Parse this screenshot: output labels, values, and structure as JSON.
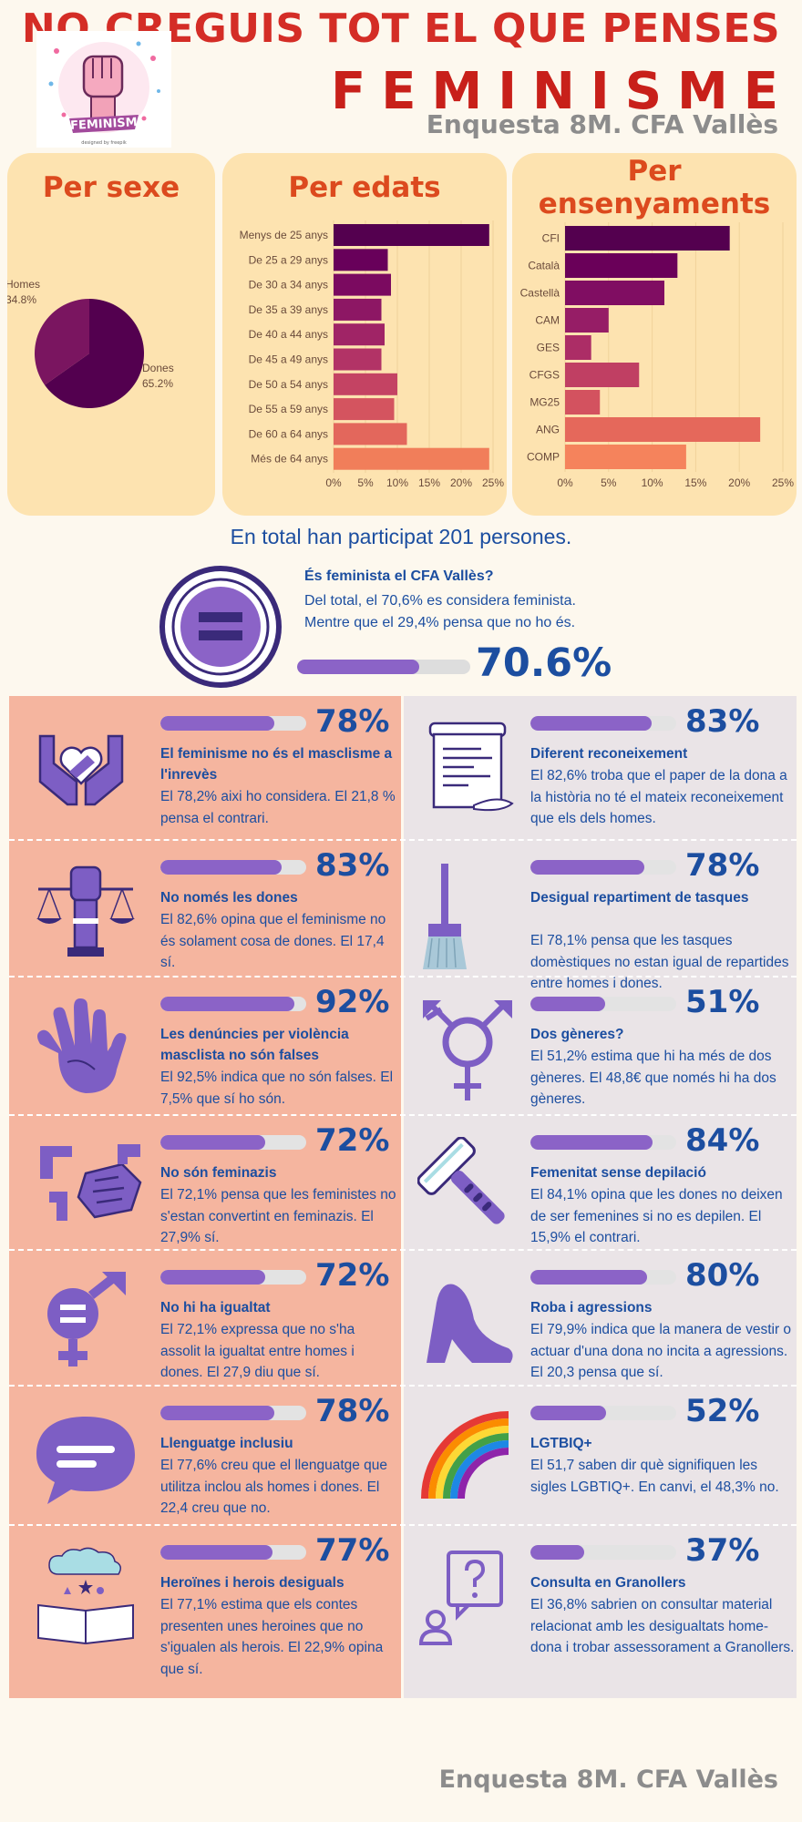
{
  "header": {
    "title": "NO CREGUIS TOT EL QUE PENSES",
    "title2": "FEMINISME",
    "subtitle": "Enquesta 8M. CFA Vallès",
    "logo_text": "FEMINISM",
    "logo_credit": "designed by freepik"
  },
  "colors": {
    "title_red": "#d42d26",
    "panel_bg": "#fde3b0",
    "accent_purple": "#8b63c7",
    "text_blue": "#1c4ea0",
    "left_col_bg": "#f5b59f",
    "right_col_bg": "#eae4e7"
  },
  "chart_data": [
    {
      "type": "pie",
      "title": "Per sexe",
      "labels": [
        "Dones",
        "Homes"
      ],
      "values": [
        65.2,
        34.8
      ],
      "value_labels": [
        "65.2%",
        "34.8%"
      ],
      "colors": [
        "#53004f",
        "#7a1560"
      ]
    },
    {
      "type": "bar",
      "orientation": "horizontal",
      "title": "Per edats",
      "categories": [
        "Menys de 25 anys",
        "De 25 a 29 anys",
        "De 30 a 34 anys",
        "De 35 a 39 anys",
        "De 40 a 44 anys",
        "De 45 a 49 anys",
        "De 50 a 54 anys",
        "De 55 a 59 anys",
        "De 60 a 64 anys",
        "Més de 64 anys"
      ],
      "values": [
        24.4,
        8.5,
        9.0,
        7.5,
        8.0,
        7.5,
        10.0,
        9.5,
        11.5,
        24.4
      ],
      "colors": [
        "#54004f",
        "#68005a",
        "#7b0a60",
        "#8d1764",
        "#a02466",
        "#b23366",
        "#c44363",
        "#d4545f",
        "#e3675c",
        "#f17e5a"
      ],
      "xlim": [
        0,
        25
      ],
      "xticks": [
        "0%",
        "5%",
        "10%",
        "15%",
        "20%",
        "25%"
      ],
      "grid": true
    },
    {
      "type": "bar",
      "orientation": "horizontal",
      "title": "Per ensenyaments",
      "categories": [
        "CFI",
        "Català",
        "Castellà",
        "CAM",
        "GES",
        "CFGS",
        "MG25",
        "ANG",
        "COMP"
      ],
      "values": [
        18.9,
        12.9,
        11.4,
        5.0,
        3.0,
        8.5,
        4.0,
        22.4,
        13.9
      ],
      "colors": [
        "#54004f",
        "#6a0059",
        "#800d62",
        "#961d66",
        "#ac2d66",
        "#c03f63",
        "#d3525f",
        "#e5685b",
        "#f5835c"
      ],
      "xlim": [
        0,
        25
      ],
      "xticks": [
        "0%",
        "5%",
        "10%",
        "15%",
        "20%",
        "25%"
      ],
      "grid": true
    }
  ],
  "total_text": "En total han participat 201 persones.",
  "feminist": {
    "title": "És feminista el CFA Vallès?",
    "text": "Del total, el 70,6% es considera feminista. Mentre que el 29,4% pensa que no ho és.",
    "percent_label": "70.6%",
    "value": 0.706
  },
  "left_items": [
    {
      "icon": "hands-heart-icon",
      "percent_label": "78%",
      "value": 0.78,
      "title": "El feminisme no és el masclisme a l'inrevès",
      "text": "El 78,2% aixi ho considera. El 21,8 % pensa el contrari."
    },
    {
      "icon": "fist-scales-icon",
      "percent_label": "83%",
      "value": 0.83,
      "title": "No només les dones",
      "text": "El 82,6% opina que el feminisme no és solament cosa de dones. El 17,4 sí."
    },
    {
      "icon": "hand-print-icon",
      "percent_label": "92%",
      "value": 0.92,
      "title": "Les denúncies per violència masclista no són falses",
      "text": "El 92,5% indica que no són falses. El 7,5% que sí ho són."
    },
    {
      "icon": "broken-swastika-icon",
      "percent_label": "72%",
      "value": 0.72,
      "title": "No són feminazis",
      "text": "El 72,1% pensa que les feministes no s'estan convertint en feminazis. El 27,9% sí."
    },
    {
      "icon": "gender-equal-icon",
      "percent_label": "72%",
      "value": 0.72,
      "title": "No hi ha igualtat",
      "text": "El 72,1% expressa que no s'ha assolit la igualtat entre homes i dones. El 27,9 diu que sí."
    },
    {
      "icon": "speech-bubble-icon",
      "percent_label": "78%",
      "value": 0.78,
      "title": "Llenguatge inclusiu",
      "text": "El 77,6% creu que el llenguatge que utilitza inclou als homes i dones. El 22,4 creu que no."
    },
    {
      "icon": "open-book-icon",
      "percent_label": "77%",
      "value": 0.77,
      "title": "Heroïnes i herois desiguals",
      "text": "El 77,1% estima que els contes presenten unes heroines que no s'igualen als herois. El 22,9% opina que sí."
    }
  ],
  "right_items": [
    {
      "icon": "scroll-quill-icon",
      "percent_label": "83%",
      "value": 0.83,
      "title": "Diferent reconeixement",
      "text": "El 82,6% troba que el paper de la dona a la història no té el mateix reconeixement que els dels homes."
    },
    {
      "icon": "broom-icon",
      "percent_label": "78%",
      "value": 0.78,
      "title": "Desigual repartiment de tasques",
      "text": "El 78,1% pensa que les tasques domèstiques no estan igual de repartides entre homes i dones."
    },
    {
      "icon": "transgender-symbol-icon",
      "percent_label": "51%",
      "value": 0.51,
      "title": "Dos gèneres?",
      "text": "El 51,2% estima que hi ha més de dos gèneres. El 48,8€ que només hi ha dos gèneres."
    },
    {
      "icon": "razor-icon",
      "percent_label": "84%",
      "value": 0.84,
      "title": "Femenitat sense depilació",
      "text": "El 84,1% opina que les dones no deixen de ser femenines si no es depilen. El 15,9% el contrari."
    },
    {
      "icon": "high-heel-icon",
      "percent_label": "80%",
      "value": 0.8,
      "title": "Roba i agressions",
      "text": "El 79,9% indica que la manera de vestir o actuar d'una dona no incita a agressions. El 20,3 pensa que sí."
    },
    {
      "icon": "rainbow-icon",
      "percent_label": "52%",
      "value": 0.52,
      "title": "LGTBIQ+",
      "text": "El 51,7 saben dir què signifiquen les sigles LGBTIQ+. En canvi, el 48,3% no."
    },
    {
      "icon": "question-person-icon",
      "percent_label": "37%",
      "value": 0.37,
      "title": "Consulta en Granollers",
      "text": "El 36,8% sabrien on consultar material relacionat amb les desigualtats home-dona i trobar assessorament a Granollers."
    }
  ],
  "footer": "Enquesta 8M. CFA Vallès"
}
